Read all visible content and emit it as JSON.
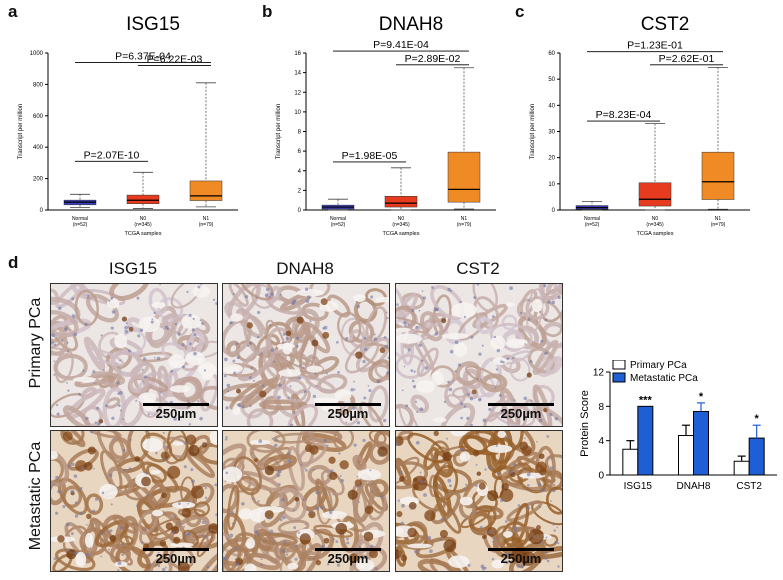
{
  "panels": {
    "a": "a",
    "b": "b",
    "c": "c",
    "d": "d"
  },
  "chart_data": [
    {
      "type": "box",
      "title": "ISG15",
      "ylabel": "Transcript per million",
      "xlabel": "TCGA samples",
      "ylim": [
        0,
        1000
      ],
      "yticks": [
        0,
        200,
        400,
        600,
        800,
        1000
      ],
      "categories": [
        "Normal",
        "N0",
        "N1"
      ],
      "category_ns": [
        "(n=52)",
        "(n=345)",
        "(n=79)"
      ],
      "colors": [
        "#3b3fbf",
        "#e63b1f",
        "#f08a24"
      ],
      "boxes": [
        {
          "min": 15,
          "q1": 33,
          "median": 50,
          "q3": 63,
          "max": 100
        },
        {
          "min": 10,
          "q1": 40,
          "median": 62,
          "q3": 95,
          "max": 240
        },
        {
          "min": 20,
          "q1": 60,
          "median": 90,
          "q3": 185,
          "max": 810
        }
      ],
      "comparisons": [
        {
          "label": "P=2.07E-10",
          "from": 0,
          "to": 1,
          "y": 310
        },
        {
          "label": "P=6.22E-03",
          "from": 1,
          "to": 2,
          "y": 920
        },
        {
          "label": "P=6.37E-04",
          "from": 0,
          "to": 2,
          "y": 940
        }
      ]
    },
    {
      "type": "box",
      "title": "DNAH8",
      "ylabel": "Transcript per million",
      "xlabel": "TCGA samples",
      "ylim": [
        0,
        16
      ],
      "yticks": [
        0,
        2,
        4,
        6,
        8,
        10,
        12,
        14,
        16
      ],
      "categories": [
        "Normal",
        "N0",
        "N1"
      ],
      "category_ns": [
        "(n=52)",
        "(n=345)",
        "(n=79)"
      ],
      "colors": [
        "#3b3fbf",
        "#e63b1f",
        "#f08a24"
      ],
      "boxes": [
        {
          "min": 0,
          "q1": 0.1,
          "median": 0.3,
          "q3": 0.5,
          "max": 1.1
        },
        {
          "min": 0,
          "q1": 0.3,
          "median": 0.7,
          "q3": 1.4,
          "max": 4.3
        },
        {
          "min": 0.1,
          "q1": 0.8,
          "median": 2.1,
          "q3": 5.9,
          "max": 14.5
        }
      ],
      "comparisons": [
        {
          "label": "P=1.98E-05",
          "from": 0,
          "to": 1,
          "y": 4.9
        },
        {
          "label": "P=2.89E-02",
          "from": 1,
          "to": 2,
          "y": 14.8
        },
        {
          "label": "P=9.41E-04",
          "from": 0,
          "to": 2,
          "y": 16.2
        }
      ]
    },
    {
      "type": "box",
      "title": "CST2",
      "ylabel": "Transcript per million",
      "xlabel": "TCGA samples",
      "ylim": [
        0,
        60
      ],
      "yticks": [
        0,
        10,
        20,
        30,
        40,
        50,
        60
      ],
      "categories": [
        "Normal",
        "N0",
        "N1"
      ],
      "category_ns": [
        "(n=52)",
        "(n=345)",
        "(n=79)"
      ],
      "colors": [
        "#3b3fbf",
        "#e63b1f",
        "#f08a24"
      ],
      "boxes": [
        {
          "min": 0,
          "q1": 0.3,
          "median": 0.9,
          "q3": 1.7,
          "max": 3.3
        },
        {
          "min": 0,
          "q1": 1.5,
          "median": 4.1,
          "q3": 10.4,
          "max": 33
        },
        {
          "min": 0.3,
          "q1": 4.0,
          "median": 10.8,
          "q3": 22.1,
          "max": 54.5
        }
      ],
      "comparisons": [
        {
          "label": "P=8.23E-04",
          "from": 0,
          "to": 1,
          "y": 34
        },
        {
          "label": "P=2.62E-01",
          "from": 1,
          "to": 2,
          "y": 55.5
        },
        {
          "label": "P=1.23E-01",
          "from": 0,
          "to": 2,
          "y": 60.5
        }
      ]
    },
    {
      "type": "bar",
      "ylabel": "Protein Score",
      "ylim": [
        0,
        12
      ],
      "yticks": [
        0,
        4,
        8,
        12
      ],
      "categories": [
        "ISG15",
        "DNAH8",
        "CST2"
      ],
      "legend_position": "top",
      "series": [
        {
          "name": "Primary PCa",
          "color": "#ffffff",
          "values": [
            3.0,
            4.6,
            1.6
          ],
          "errors": [
            1.0,
            1.2,
            0.6
          ]
        },
        {
          "name": "Metastatic PCa",
          "color": "#1f5fd6",
          "values": [
            8.0,
            7.4,
            4.3
          ],
          "errors": [
            0,
            1.0,
            1.5
          ]
        }
      ],
      "significance": [
        "***",
        "*",
        "*"
      ]
    }
  ],
  "ihc": {
    "columns": [
      "ISG15",
      "DNAH8",
      "CST2"
    ],
    "rows": [
      "Primary PCa",
      "Metastatic PCa"
    ],
    "scale_label": "250µm",
    "stain_levels": [
      [
        0.1,
        0.25,
        0.1
      ],
      [
        0.65,
        0.55,
        0.85
      ]
    ]
  }
}
